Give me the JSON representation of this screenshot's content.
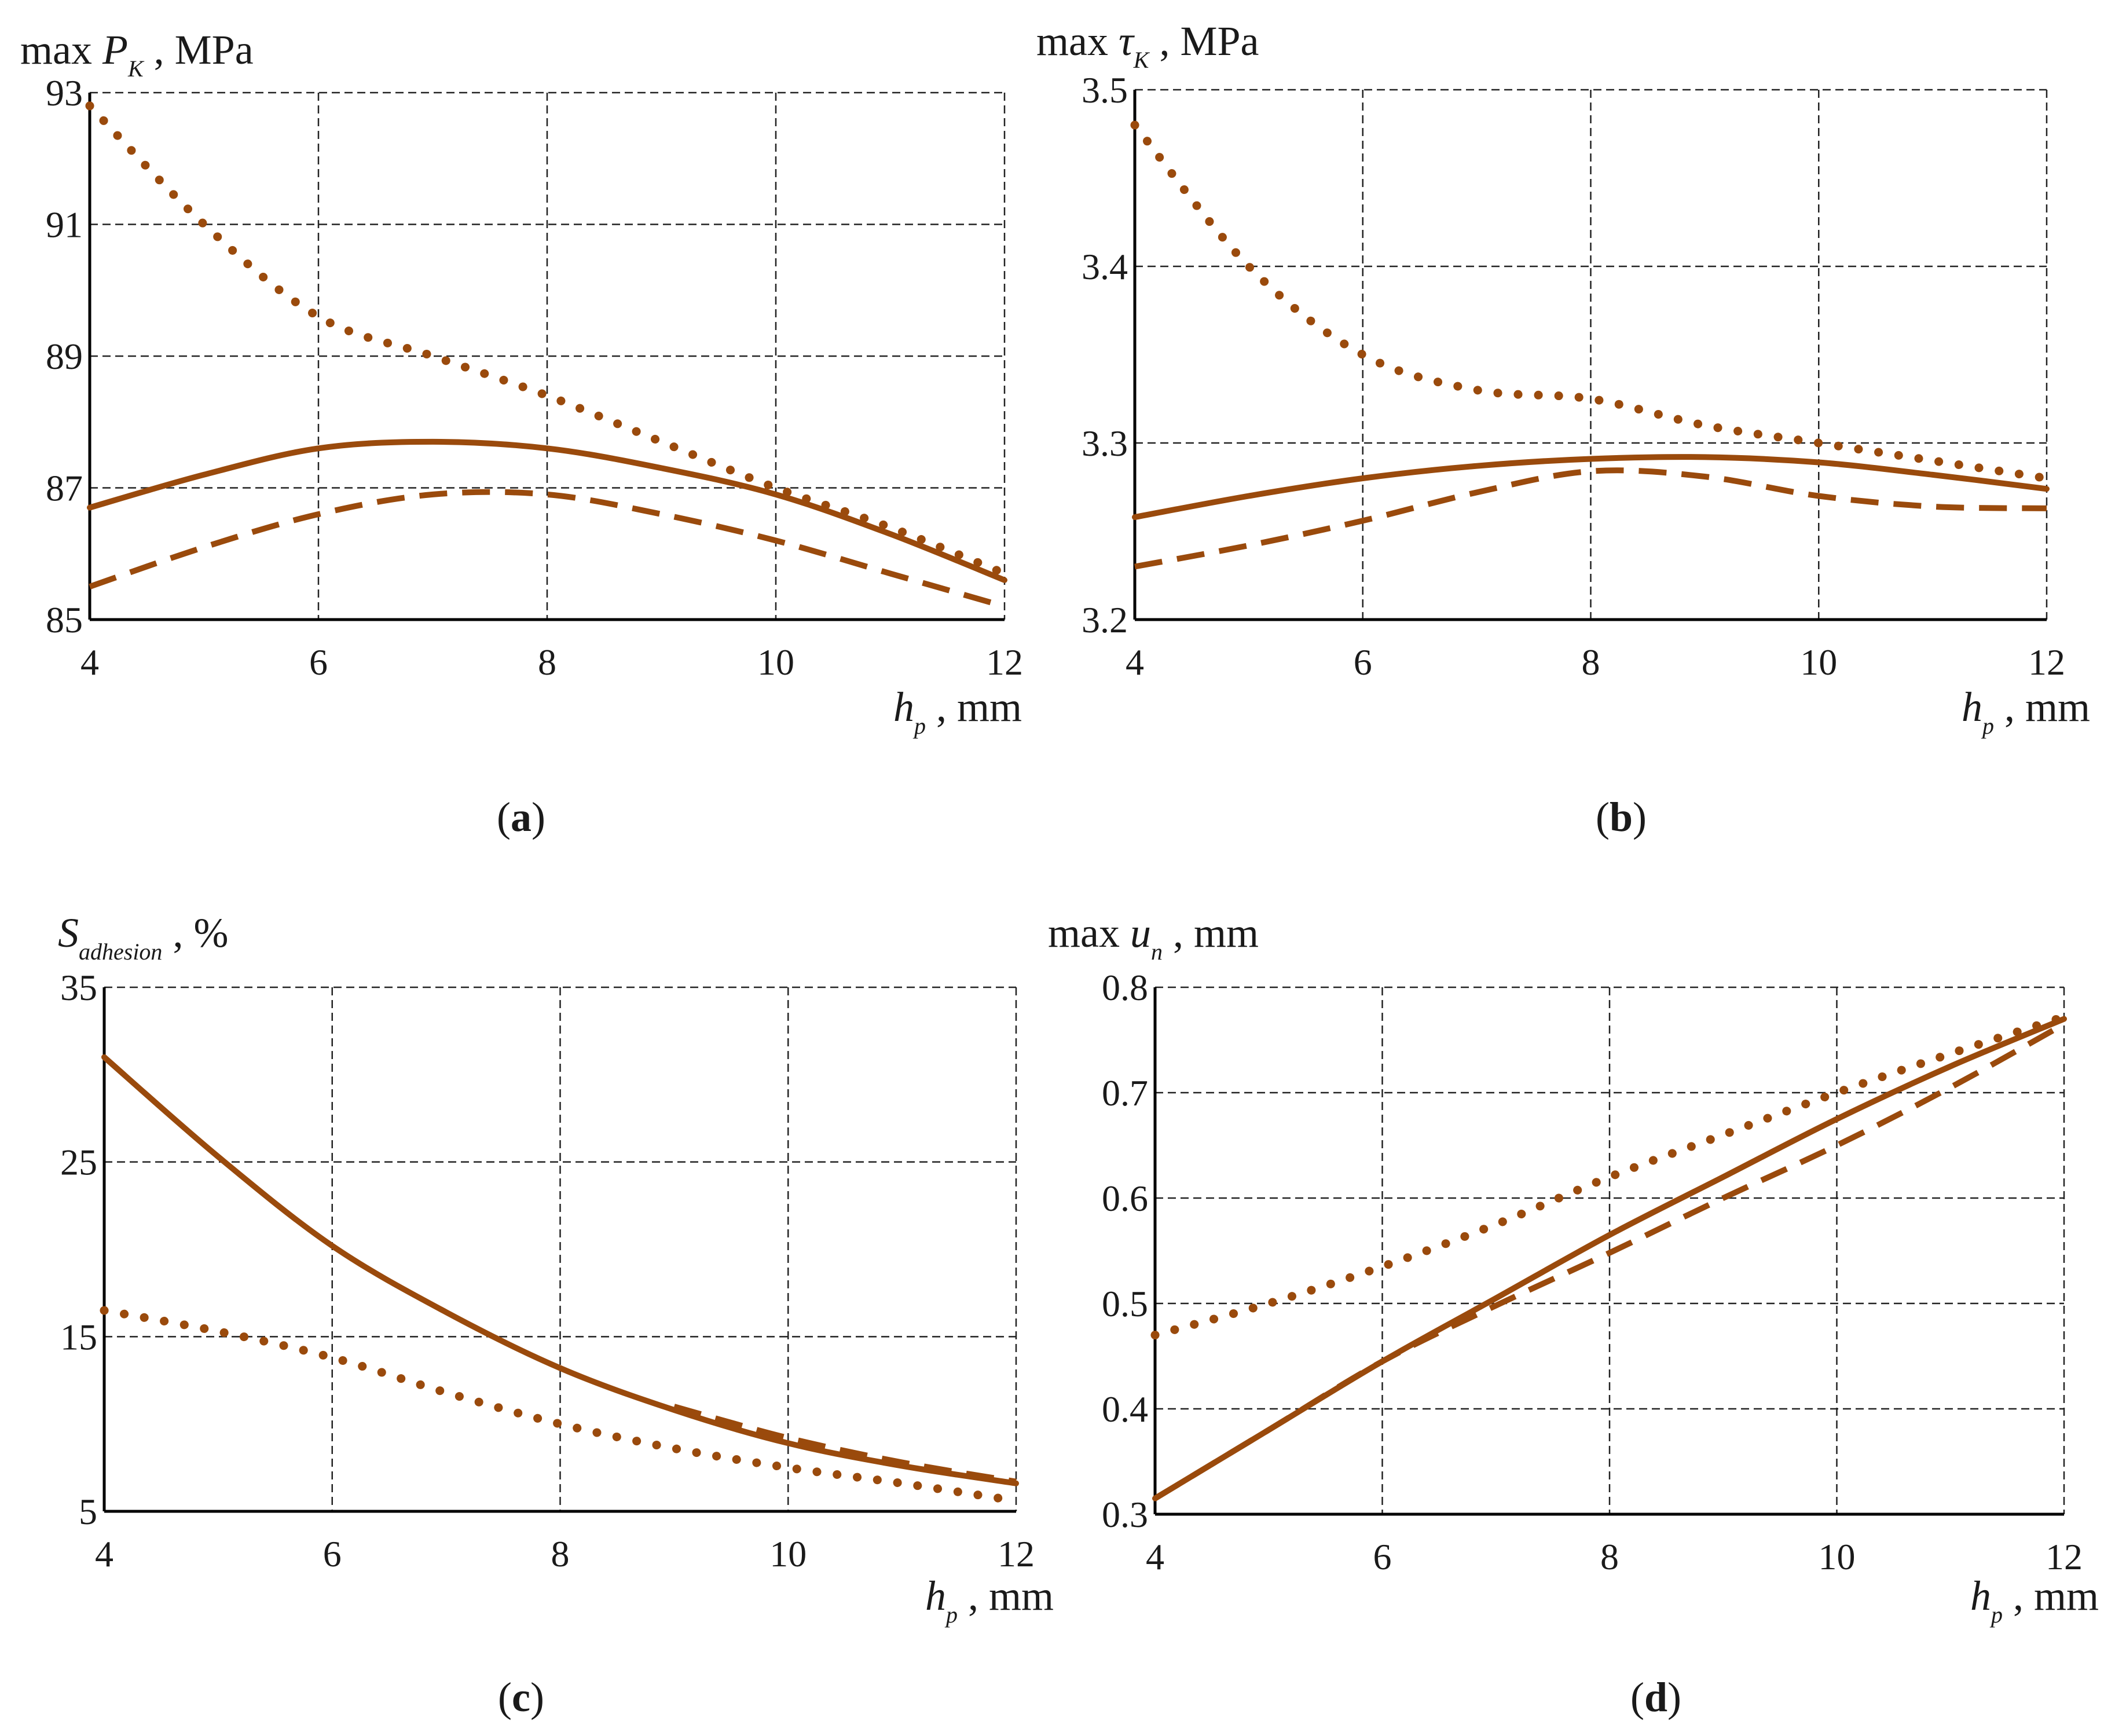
{
  "figure": {
    "line_color": "#9a4a0c",
    "grid_color": "#222222"
  },
  "chart_data": [
    {
      "id": "a",
      "type": "line",
      "caption_label": "a",
      "ylabel": {
        "prefix": "max ",
        "var": "P",
        "sub": "K",
        "unit": " , MPa"
      },
      "xlabel": {
        "var": "h",
        "sub": "p",
        "unit": " , mm"
      },
      "xlim": [
        4,
        12
      ],
      "ylim": [
        85,
        93
      ],
      "xticks": [
        4,
        6,
        8,
        10,
        12
      ],
      "yticks": [
        85,
        87,
        89,
        91,
        93
      ],
      "grid": true,
      "series": [
        {
          "style": "dotted",
          "x": [
            4,
            5,
            6,
            7,
            8,
            9,
            10,
            11,
            12
          ],
          "y": [
            92.8,
            91.0,
            89.6,
            89.0,
            88.4,
            87.7,
            87.0,
            86.4,
            85.7
          ]
        },
        {
          "style": "solid",
          "x": [
            4,
            5,
            6,
            7,
            8,
            9,
            10,
            11,
            12
          ],
          "y": [
            86.7,
            87.2,
            87.6,
            87.7,
            87.6,
            87.3,
            86.9,
            86.3,
            85.6
          ]
        },
        {
          "style": "dashed",
          "x": [
            4,
            5,
            6,
            7,
            8,
            9,
            10,
            11,
            12
          ],
          "y": [
            85.5,
            86.1,
            86.6,
            86.9,
            86.9,
            86.6,
            86.2,
            85.7,
            85.2
          ]
        }
      ]
    },
    {
      "id": "b",
      "type": "line",
      "caption_label": "b",
      "ylabel": {
        "prefix": "max ",
        "var": "τ",
        "sub": "K",
        "unit": " , MPa"
      },
      "xlabel": {
        "var": "h",
        "sub": "p",
        "unit": " , mm"
      },
      "xlim": [
        4,
        12
      ],
      "ylim": [
        3.2,
        3.5
      ],
      "xticks": [
        4,
        6,
        8,
        10,
        12
      ],
      "yticks": [
        3.2,
        3.3,
        3.4,
        3.5
      ],
      "grid": true,
      "series": [
        {
          "style": "dotted",
          "x": [
            4,
            5,
            6,
            7,
            8,
            9,
            10,
            11,
            12
          ],
          "y": [
            3.48,
            3.4,
            3.35,
            3.33,
            3.325,
            3.31,
            3.3,
            3.29,
            3.28
          ]
        },
        {
          "style": "solid",
          "x": [
            4,
            5,
            6,
            7,
            8,
            9,
            10,
            11,
            12
          ],
          "y": [
            3.258,
            3.27,
            3.28,
            3.287,
            3.291,
            3.292,
            3.289,
            3.282,
            3.274
          ]
        },
        {
          "style": "dashed",
          "x": [
            4,
            5,
            6,
            7,
            8,
            9,
            10,
            11,
            12
          ],
          "y": [
            3.23,
            3.242,
            3.256,
            3.272,
            3.284,
            3.281,
            3.27,
            3.264,
            3.263
          ]
        }
      ]
    },
    {
      "id": "c",
      "type": "line",
      "caption_label": "c",
      "ylabel": {
        "prefix": "",
        "var": "S",
        "sub": "adhesion",
        "unit": " , %"
      },
      "xlabel": {
        "var": "h",
        "sub": "p",
        "unit": " , mm"
      },
      "xlim": [
        4,
        12
      ],
      "ylim": [
        5,
        35
      ],
      "xticks": [
        4,
        6,
        8,
        10,
        12
      ],
      "yticks": [
        5,
        15,
        25,
        35
      ],
      "grid": true,
      "series": [
        {
          "style": "dotted",
          "x": [
            4,
            5,
            6,
            7,
            8,
            9,
            10,
            11,
            12
          ],
          "y": [
            16.5,
            15.3,
            13.8,
            11.8,
            10.0,
            8.6,
            7.5,
            6.6,
            5.6
          ]
        },
        {
          "style": "solid",
          "x": [
            4,
            5,
            6,
            7,
            8,
            9,
            10,
            11,
            12
          ],
          "y": [
            31.0,
            25.3,
            20.2,
            16.4,
            13.2,
            10.8,
            8.9,
            7.6,
            6.6
          ]
        },
        {
          "style": "dashed",
          "x": [
            9,
            10,
            11,
            12
          ],
          "y": [
            11.0,
            9.2,
            7.8,
            6.7
          ]
        }
      ]
    },
    {
      "id": "d",
      "type": "line",
      "caption_label": "d",
      "ylabel": {
        "prefix": "max ",
        "var": "u",
        "sub": "n",
        "unit": " , mm"
      },
      "xlabel": {
        "var": "h",
        "sub": "p",
        "unit": " , mm"
      },
      "xlim": [
        4,
        12
      ],
      "ylim": [
        0.3,
        0.8
      ],
      "xticks": [
        4,
        6,
        8,
        10,
        12
      ],
      "yticks": [
        0.3,
        0.4,
        0.5,
        0.6,
        0.7,
        0.8
      ],
      "grid": true,
      "series": [
        {
          "style": "dotted",
          "x": [
            4,
            5,
            6,
            7,
            8,
            9,
            10,
            11,
            12
          ],
          "y": [
            0.47,
            0.5,
            0.535,
            0.575,
            0.62,
            0.66,
            0.7,
            0.737,
            0.772
          ]
        },
        {
          "style": "solid",
          "x": [
            4,
            5,
            6,
            7,
            8,
            9,
            10,
            11,
            12
          ],
          "y": [
            0.315,
            0.38,
            0.445,
            0.505,
            0.565,
            0.62,
            0.675,
            0.725,
            0.77
          ]
        },
        {
          "style": "dashed",
          "x": [
            4,
            5,
            6,
            7,
            8,
            9,
            10,
            11,
            12
          ],
          "y": [
            0.315,
            0.38,
            0.445,
            0.498,
            0.548,
            0.6,
            0.65,
            0.705,
            0.765
          ]
        }
      ]
    }
  ]
}
